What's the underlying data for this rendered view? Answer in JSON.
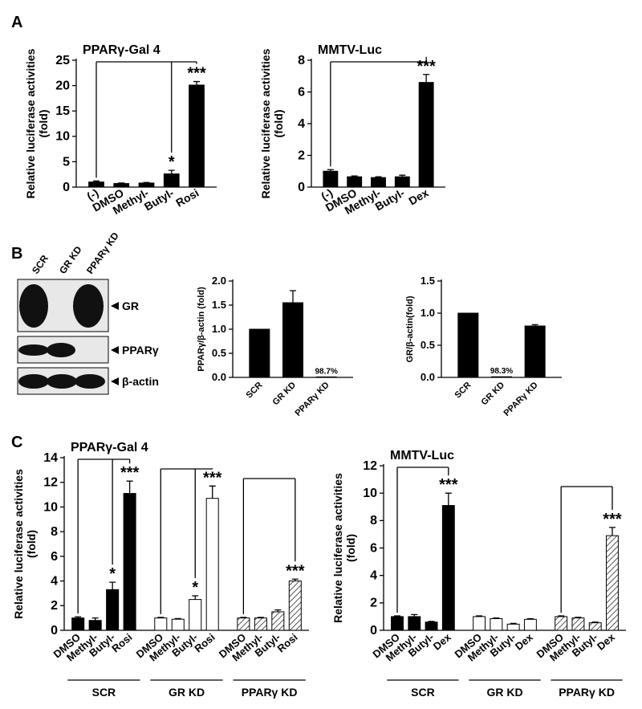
{
  "panels": [
    "A",
    "B",
    "C"
  ],
  "blot": {
    "lanes": [
      "SCR",
      "GR KD",
      "PPARγ KD"
    ],
    "bands": [
      "GR",
      "PPARγ",
      "β-actin"
    ]
  },
  "chart_data": [
    {
      "type": "bar",
      "title": "PPARγ-Gal 4",
      "y_label": [
        "Relative luciferase activities",
        "(fold)"
      ],
      "categories": [
        "(-)",
        "DMSO",
        "Methyl-",
        "Butyl-",
        "Rosi"
      ],
      "values": [
        1.0,
        0.7,
        0.8,
        2.6,
        20.1
      ],
      "errors": [
        0.2,
        0.1,
        0.1,
        0.7,
        0.7
      ],
      "bar_labels": [
        null,
        null,
        null,
        "*",
        "***"
      ],
      "color": "#000000",
      "ylim": [
        0,
        25
      ],
      "yticks": [
        0,
        5,
        10,
        15,
        20,
        25
      ]
    },
    {
      "type": "bar",
      "title": "MMTV-Luc",
      "y_label": [
        "Relative luciferase activities",
        "(fold)"
      ],
      "categories": [
        "(-)",
        "DMSO",
        "Methyl-",
        "Butyl-",
        "Dex"
      ],
      "values": [
        1.0,
        0.65,
        0.6,
        0.65,
        6.6
      ],
      "errors": [
        0.1,
        0.05,
        0.05,
        0.1,
        0.5
      ],
      "bar_labels": [
        null,
        null,
        null,
        null,
        "***"
      ],
      "color": "#000000",
      "ylim": [
        0,
        8
      ],
      "yticks": [
        0,
        2,
        4,
        6,
        8
      ]
    },
    {
      "type": "bar",
      "y_label": [
        "PPARγ/β-actin (fold)"
      ],
      "categories": [
        "SCR",
        "GR KD",
        "PPARγ KD"
      ],
      "values": [
        1.0,
        1.55,
        0.01
      ],
      "errors": [
        0,
        0.25,
        0
      ],
      "bar_labels": [
        null,
        null,
        "98.7%"
      ],
      "color": "#000000",
      "ylim": [
        0,
        2.0
      ],
      "yticks": [
        {
          "value": 0,
          "label": "0.0"
        },
        {
          "value": 0.5,
          "label": "0.5"
        },
        {
          "value": 1,
          "label": "1.0"
        },
        {
          "value": 1.5,
          "label": "1.5"
        },
        {
          "value": 2,
          "label": "2.0"
        }
      ]
    },
    {
      "type": "bar",
      "y_label": [
        "GR/β-actin(fold)"
      ],
      "categories": [
        "SCR",
        "GR KD",
        "PPARγ KD"
      ],
      "values": [
        1.0,
        0.01,
        0.8
      ],
      "errors": [
        0,
        0,
        0.02
      ],
      "bar_labels": [
        null,
        "98.3%",
        null
      ],
      "color": "#000000",
      "ylim": [
        0,
        1.5
      ],
      "yticks": [
        {
          "value": 0,
          "label": "0.0"
        },
        {
          "value": 0.5,
          "label": "0.5"
        },
        {
          "value": 1,
          "label": "1.0"
        },
        {
          "value": 1.5,
          "label": "1.5"
        }
      ]
    },
    {
      "type": "grouped_bar",
      "title": "PPARγ-Gal 4",
      "y_label": [
        "Relative luciferase activities",
        "(fold)"
      ],
      "categories": [
        "DMSO",
        "Methyl-",
        "Butyl-",
        "Rosi"
      ],
      "series": [
        {
          "name": "SCR",
          "color": "#000000",
          "pattern": "solid",
          "values": [
            1.0,
            0.8,
            3.3,
            11.1
          ],
          "errors": [
            0.1,
            0.2,
            0.6,
            1.0
          ],
          "bar_labels": [
            null,
            null,
            "*",
            "***"
          ]
        },
        {
          "name": "GR KD",
          "color": "#ffffff",
          "pattern": "solid",
          "values": [
            1.0,
            0.9,
            2.5,
            10.7
          ],
          "errors": [
            0.05,
            0.05,
            0.3,
            1.0
          ],
          "bar_labels": [
            null,
            null,
            "*",
            "***"
          ]
        },
        {
          "name": "PPARγ KD",
          "color": "#ffffff",
          "pattern": "hatch",
          "values": [
            1.0,
            1.0,
            1.5,
            4.0
          ],
          "errors": [
            0.05,
            0.05,
            0.15,
            0.15
          ],
          "bar_labels": [
            null,
            null,
            null,
            "***"
          ]
        }
      ],
      "ylim": [
        0,
        14
      ],
      "yticks": [
        0,
        2,
        4,
        6,
        8,
        10,
        12,
        14
      ]
    },
    {
      "type": "grouped_bar",
      "title": "MMTV-Luc",
      "y_label": [
        "Relative luciferase activities",
        "(fold)"
      ],
      "categories": [
        "DMSO",
        "Methyl-",
        "Butyl-",
        "Dex"
      ],
      "series": [
        {
          "name": "SCR",
          "color": "#000000",
          "pattern": "solid",
          "values": [
            1.0,
            1.0,
            0.6,
            9.1
          ],
          "errors": [
            0.05,
            0.15,
            0.05,
            0.9
          ],
          "bar_labels": [
            null,
            null,
            null,
            "***"
          ]
        },
        {
          "name": "GR KD",
          "color": "#ffffff",
          "pattern": "solid",
          "values": [
            1.0,
            0.85,
            0.45,
            0.8
          ],
          "errors": [
            0.05,
            0.05,
            0.05,
            0.05
          ],
          "bar_labels": [
            null,
            null,
            null,
            null
          ]
        },
        {
          "name": "PPARγ KD",
          "color": "#ffffff",
          "pattern": "hatch",
          "values": [
            1.0,
            0.9,
            0.55,
            6.9
          ],
          "errors": [
            0.05,
            0.05,
            0.05,
            0.6
          ],
          "bar_labels": [
            null,
            null,
            null,
            "***"
          ]
        }
      ],
      "ylim": [
        0,
        12
      ],
      "yticks": [
        0,
        2,
        4,
        6,
        8,
        10,
        12
      ]
    }
  ]
}
